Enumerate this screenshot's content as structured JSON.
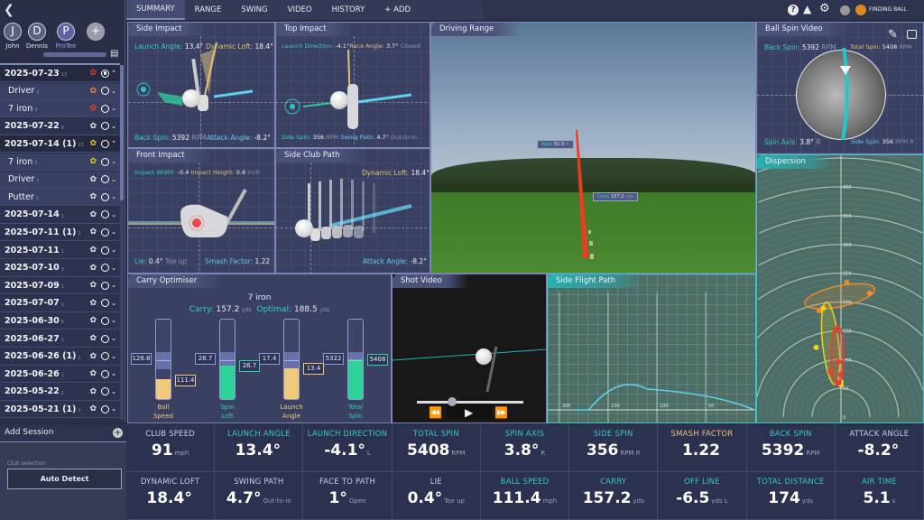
{
  "nav": {
    "back_icon": "chevron-left-icon",
    "tabs": [
      {
        "label": "SUMMARY",
        "active": true
      },
      {
        "label": "RANGE"
      },
      {
        "label": "SWING"
      },
      {
        "label": "VIDEO"
      },
      {
        "label": "HISTORY"
      },
      {
        "label": "+ ADD"
      }
    ],
    "status": {
      "help_icon": "question-icon",
      "warning_icon": "warning-icon",
      "settings_icon": "gear-icon",
      "device_icon": "sensor-icon",
      "status_text": "FINDING BALL",
      "status_color": "#e08a1e"
    }
  },
  "users": [
    {
      "initial": "J",
      "name": "John"
    },
    {
      "initial": "D",
      "name": "Dennis"
    },
    {
      "initial": "P",
      "name": "ProTee",
      "active": true
    }
  ],
  "sessions": [
    {
      "label": "2025-07-23",
      "count": "12",
      "expanded": true,
      "icon_color": "#e0402a",
      "selected": true
    },
    {
      "label": "Driver",
      "count": "3",
      "sub": true,
      "icon_color": "#e88a2a"
    },
    {
      "label": "7 iron",
      "count": "9",
      "sub": true,
      "icon_color": "#e0402a"
    },
    {
      "label": "2025-07-22",
      "count": "8",
      "icon_color": "#e8e8f0"
    },
    {
      "label": "2025-07-14 (1)",
      "count": "13",
      "expanded": true,
      "icon_color": "#e8c81e"
    },
    {
      "label": "7 iron",
      "count": "5",
      "sub": true,
      "icon_color": "#e8c81e"
    },
    {
      "label": "Driver",
      "count": "7",
      "sub": true,
      "icon_color": "#e8e8f0"
    },
    {
      "label": "Putter",
      "count": "1",
      "sub": true,
      "icon_color": "#e8e8f0"
    },
    {
      "label": "2025-07-14",
      "count": "1",
      "icon_color": "#e8e8f0"
    },
    {
      "label": "2025-07-11 (1)",
      "count": "1",
      "icon_color": "#e8e8f0"
    },
    {
      "label": "2025-07-11",
      "count": "1",
      "icon_color": "#e8e8f0"
    },
    {
      "label": "2025-07-10",
      "count": "3",
      "icon_color": "#e8e8f0"
    },
    {
      "label": "2025-07-09",
      "count": "1",
      "icon_color": "#e8e8f0"
    },
    {
      "label": "2025-07-07",
      "count": "5",
      "icon_color": "#e8e8f0"
    },
    {
      "label": "2025-06-30",
      "count": "6",
      "icon_color": "#e8e8f0"
    },
    {
      "label": "2025-06-27",
      "count": "1",
      "icon_color": "#e8e8f0"
    },
    {
      "label": "2025-06-26 (1)",
      "count": "1",
      "icon_color": "#e8e8f0"
    },
    {
      "label": "2025-06-26",
      "count": "1",
      "icon_color": "#e8e8f0"
    },
    {
      "label": "2025-05-22",
      "count": "1",
      "icon_color": "#e8e8f0"
    },
    {
      "label": "2025-05-21 (1)",
      "count": "1",
      "icon_color": "#e8e8f0"
    }
  ],
  "add_session": {
    "title": "Add Session",
    "club_label": "Club selection:",
    "club_value": "Auto Detect"
  },
  "side_impact": {
    "title": "Side Impact",
    "launch_angle_label": "Launch Angle:",
    "launch_angle": "13.4°",
    "dynamic_loft_label": "Dynamic Loft:",
    "dynamic_loft": "18.4°",
    "back_spin_label": "Back Spin:",
    "back_spin": "5392",
    "back_spin_unit": "RPM",
    "attack_angle_label": "Attack Angle:",
    "attack_angle": "-8.2°"
  },
  "top_impact": {
    "title": "Top Impact",
    "launch_dir_label": "Launch Direction:",
    "launch_dir": "-4.1°",
    "face_angle_label": "Race Angle:",
    "face_angle": "3.7°",
    "face_note": "Closed",
    "side_spin_label": "Side Spin:",
    "side_spin": "356",
    "side_spin_unit": "RPM",
    "swing_path_label": "Swing Path:",
    "swing_path": "4.7°",
    "swing_note": "Out-to-in"
  },
  "front_impact": {
    "title": "Front Impact",
    "width_label": "Impact Width:",
    "width": "-0.4",
    "height_label": "Impact Height:",
    "height": "0.6",
    "unit": "inch",
    "lie_label": "Lie:",
    "lie": "0.4°",
    "lie_note": "Toe up",
    "smash_label": "Smash Factor:",
    "smash": "1.22"
  },
  "side_club_path": {
    "title": "Side Club Path",
    "dynamic_loft_label": "Dynamic Loft:",
    "dynamic_loft": "18.4°",
    "attack_angle_label": "Attack Angle:",
    "attack_angle": "-8.2°"
  },
  "driving_range": {
    "title": "Driving Range",
    "apex_label": "Apex",
    "apex": "61.5",
    "apex_unit": "ft",
    "carry_label": "Carry",
    "carry": "157.2",
    "carry_unit": "yds"
  },
  "ball_spin": {
    "title": "Ball Spin Video",
    "edit_icon": "pencil-icon",
    "lock_icon": "lock-icon",
    "back_spin_label": "Back Spin:",
    "back_spin": "5392",
    "total_spin_label": "Total Spin:",
    "total_spin": "5408",
    "rpm": "RPM",
    "spin_axis_label": "Spin Axis:",
    "spin_axis": "3.8°",
    "spin_axis_dir": "R",
    "side_spin_label": "Side Spin:",
    "side_spin": "356",
    "side_spin_unit": "RPM R"
  },
  "carry_optimiser": {
    "title": "Carry Optimiser",
    "club": "7 iron",
    "carry_label": "Carry:",
    "carry": "157.2",
    "optimal_label": "Optimal:",
    "optimal": "188.5",
    "unit": "yds",
    "bars": [
      {
        "label1": "Ball",
        "label2": "Speed",
        "optimal": "126.8",
        "actual": "111.4",
        "fill": 0.25,
        "color": "#f0c97a"
      },
      {
        "label1": "Spin",
        "label2": "Loft",
        "optimal": "28.7",
        "actual": "26.7",
        "fill": 0.42,
        "color": "#2fd39a"
      },
      {
        "label1": "Launch",
        "label2": "Angle",
        "optimal": "17.4",
        "actual": "13.4",
        "fill": 0.39,
        "color": "#f0c97a"
      },
      {
        "label1": "Total",
        "label2": "Spin",
        "optimal": "5322",
        "actual": "5408",
        "fill": 0.5,
        "color": "#2fd39a"
      }
    ]
  },
  "shot_video": {
    "title": "Shot Video",
    "progress": 0.33,
    "rewind_icon": "rewind-icon",
    "play_icon": "play-icon",
    "forward_icon": "fast-forward-icon"
  },
  "side_flight": {
    "title": "Side Flight Path",
    "ticks": [
      "200",
      "150",
      "100",
      "50"
    ]
  },
  "dispersion": {
    "title": "Dispersion",
    "rings": [
      "0",
      "50",
      "100",
      "150",
      "200",
      "250",
      "300",
      "350",
      "400"
    ],
    "groups": [
      {
        "color": "#f08a2a",
        "points": [
          [
            10,
            234
          ],
          [
            50,
            215
          ],
          [
            -38,
            185
          ]
        ]
      },
      {
        "color": "#f0d020",
        "points": [
          [
            -31,
            189
          ],
          [
            -43,
            121
          ],
          [
            0,
            62
          ],
          [
            0,
            56
          ]
        ]
      },
      {
        "color": "#f03a2a",
        "points": [
          [
            -8,
            151
          ],
          [
            -4,
            96
          ],
          [
            -18,
            78
          ],
          [
            0,
            74
          ],
          [
            -4,
            60
          ]
        ]
      }
    ]
  },
  "stats": [
    {
      "label": "CLUB SPEED",
      "value": "91",
      "unit": "mph",
      "color": "#c5cbe8"
    },
    {
      "label": "LAUNCH ANGLE",
      "value": "13.4°",
      "unit": "",
      "color": "#35c9b8"
    },
    {
      "label": "LAUNCH DIRECTION",
      "value": "-4.1°",
      "unit": "L",
      "color": "#35c9b8"
    },
    {
      "label": "TOTAL SPIN",
      "value": "5408",
      "unit": "RPM",
      "color": "#35c9b8"
    },
    {
      "label": "SPIN AXIS",
      "value": "3.8°",
      "unit": "R",
      "color": "#35c9b8"
    },
    {
      "label": "SIDE SPIN",
      "value": "356",
      "unit": "RPM R",
      "color": "#35c9b8"
    },
    {
      "label": "SMASH FACTOR",
      "value": "1.22",
      "unit": "",
      "color": "#e2c27a"
    },
    {
      "label": "BACK SPIN",
      "value": "5392",
      "unit": "RPM",
      "color": "#35c9b8"
    },
    {
      "label": "ATTACK ANGLE",
      "value": "-8.2°",
      "unit": "",
      "color": "#c5cbe8"
    },
    {
      "label": "DYNAMIC LOFT",
      "value": "18.4°",
      "unit": "",
      "color": "#c5cbe8"
    },
    {
      "label": "SWING PATH",
      "value": "4.7°",
      "unit": "Out-to-in",
      "color": "#c5cbe8"
    },
    {
      "label": "FACE TO PATH",
      "value": "1°",
      "unit": "Open",
      "color": "#c5cbe8"
    },
    {
      "label": "LIE",
      "value": "0.4°",
      "unit": "Toe up",
      "color": "#c5cbe8"
    },
    {
      "label": "BALL SPEED",
      "value": "111.4",
      "unit": "mph",
      "color": "#35c9b8"
    },
    {
      "label": "CARRY",
      "value": "157.2",
      "unit": "yds",
      "color": "#35c9b8"
    },
    {
      "label": "OFF LINE",
      "value": "-6.5",
      "unit": "yds L",
      "color": "#35c9b8"
    },
    {
      "label": "TOTAL DISTANCE",
      "value": "174",
      "unit": "yds",
      "color": "#35c9b8"
    },
    {
      "label": "AIR TIME",
      "value": "5.1",
      "unit": "s",
      "color": "#35c9b8"
    }
  ]
}
